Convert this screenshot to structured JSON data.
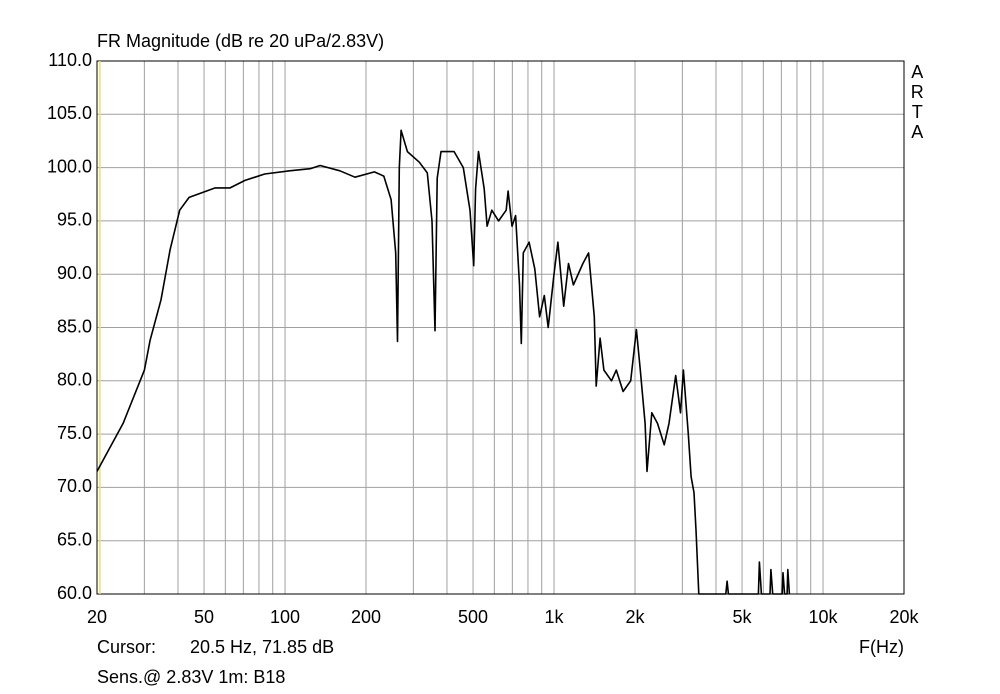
{
  "chart_data": {
    "type": "line",
    "title": "FR Magnitude (dB re 20 uPa/2.83V)",
    "side_label": "ARTA",
    "x_axis_label": "F(Hz)",
    "cursor_label": "Cursor:",
    "cursor": {
      "x": 20.5,
      "label": "20.5 Hz, 71.85 dB",
      "color": "#e8e070"
    },
    "footer": "Sens.@ 2.83V 1m: B18",
    "log_x": true,
    "grid": true,
    "color": "#000000",
    "xlim": [
      20,
      20000
    ],
    "ylim": [
      60,
      110
    ],
    "xticks": [
      20,
      50,
      100,
      200,
      500,
      {
        "value": 1000,
        "label": "1k"
      },
      {
        "value": 2000,
        "label": "2k"
      },
      {
        "value": 5000,
        "label": "5k"
      },
      {
        "value": 10000,
        "label": "10k"
      },
      {
        "value": 20000,
        "label": "20k"
      }
    ],
    "xgrid": [
      30,
      40,
      50,
      60,
      70,
      80,
      90,
      100,
      200,
      300,
      400,
      500,
      600,
      700,
      800,
      900,
      1000,
      2000,
      3000,
      4000,
      5000,
      6000,
      7000,
      8000,
      9000,
      10000
    ],
    "yticks": [
      {
        "value": 60,
        "label": "60.0"
      },
      {
        "value": 65,
        "label": "65.0"
      },
      {
        "value": 70,
        "label": "70.0"
      },
      {
        "value": 75,
        "label": "75.0"
      },
      {
        "value": 80,
        "label": "80.0"
      },
      {
        "value": 85,
        "label": "85.0"
      },
      {
        "value": 90,
        "label": "90.0"
      },
      {
        "value": 95,
        "label": "95.0"
      },
      {
        "value": 100,
        "label": "100.0"
      },
      {
        "value": 105,
        "label": "105.0"
      },
      {
        "value": 110,
        "label": "110.0"
      }
    ],
    "x": [
      20,
      25,
      30,
      31.5,
      34.6,
      37.4,
      40.6,
      44,
      55,
      62.5,
      71,
      84,
      104,
      124,
      135,
      160,
      182,
      215,
      233,
      248,
      258,
      262,
      266,
      270,
      285,
      316,
      338,
      352,
      361,
      368,
      380,
      425,
      460,
      487,
      503,
      511,
      524,
      550,
      564,
      587,
      622,
      664,
      675,
      698,
      720,
      744,
      756,
      769,
      808,
      848,
      884,
      920,
      951,
      1000,
      1034,
      1086,
      1132,
      1180,
      1280,
      1345,
      1412,
      1435,
      1484,
      1533,
      1636,
      1704,
      1806,
      1928,
      2024,
      2093,
      2181,
      2216,
      2309,
      2425,
      2568,
      2676,
      2833,
      2953,
      3027,
      3155,
      3233,
      3314,
      3370,
      3452,
      4350,
      4400,
      4450,
      5750,
      5800,
      5900,
      6350,
      6400,
      6500,
      7050,
      7100,
      7200,
      7350,
      7400,
      7500
    ],
    "values": [
      71.5,
      76,
      81,
      83.8,
      87.6,
      92.3,
      96,
      97.2,
      98.1,
      98.1,
      98.8,
      99.4,
      99.7,
      99.9,
      100.2,
      99.7,
      99.1,
      99.6,
      99.2,
      97,
      92,
      83.7,
      100,
      103.5,
      101.5,
      100.5,
      99.5,
      95,
      84.7,
      99,
      101.5,
      101.5,
      100,
      96,
      90.8,
      98,
      101.5,
      98,
      94.5,
      96,
      95,
      96,
      97.8,
      94.5,
      95.5,
      89,
      83.5,
      92,
      93,
      90.5,
      86,
      88,
      85,
      90,
      93,
      87,
      91,
      89,
      91,
      92,
      86,
      79.5,
      84,
      81,
      80,
      81,
      79,
      80,
      84.8,
      81,
      76,
      71.5,
      77,
      76,
      74,
      76,
      80.5,
      77,
      81,
      75,
      71,
      69.5,
      66,
      60,
      60,
      61.2,
      60,
      60,
      63,
      60,
      60,
      62.3,
      60,
      60,
      62,
      60,
      60,
      62.3,
      60
    ]
  }
}
